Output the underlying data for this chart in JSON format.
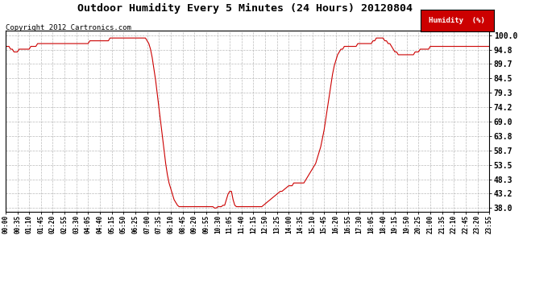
{
  "title": "Outdoor Humidity Every 5 Minutes (24 Hours) 20120804",
  "copyright_text": "Copyright 2012 Cartronics.com",
  "legend_label": "Humidity  (%)",
  "line_color": "#cc0000",
  "background_color": "#ffffff",
  "grid_color": "#aaaaaa",
  "yticks": [
    38.0,
    43.2,
    48.3,
    53.5,
    58.7,
    63.8,
    69.0,
    74.2,
    79.3,
    84.5,
    89.7,
    94.8,
    100.0
  ],
  "ylim": [
    36.8,
    101.8
  ],
  "humidity_data": [
    96,
    96,
    96,
    95,
    95,
    94,
    94,
    94,
    95,
    95,
    95,
    95,
    95,
    95,
    95,
    96,
    96,
    96,
    96,
    97,
    97,
    97,
    97,
    97,
    97,
    97,
    97,
    97,
    97,
    97,
    97,
    97,
    97,
    97,
    97,
    97,
    97,
    97,
    97,
    97,
    97,
    97,
    97,
    97,
    97,
    97,
    97,
    97,
    97,
    97,
    98,
    98,
    98,
    98,
    98,
    98,
    98,
    98,
    98,
    98,
    98,
    98,
    99,
    99,
    99,
    99,
    99,
    99,
    99,
    99,
    99,
    99,
    99,
    99,
    99,
    99,
    99,
    99,
    99,
    99,
    99,
    99,
    99,
    99,
    98,
    97,
    95,
    92,
    88,
    84,
    79,
    74,
    69,
    64,
    59,
    54,
    50,
    47,
    45,
    43,
    41,
    40,
    39,
    38.5,
    38.5,
    38.5,
    38.5,
    38.5,
    38.5,
    38.5,
    38.5,
    38.5,
    38.5,
    38.5,
    38.5,
    38.5,
    38.5,
    38.5,
    38.5,
    38.5,
    38.5,
    38.5,
    38.5,
    38.5,
    38,
    38,
    38.5,
    38.5,
    38.5,
    39,
    39,
    41,
    43,
    44,
    44,
    41,
    39,
    38.5,
    38.5,
    38.5,
    38.5,
    38.5,
    38.5,
    38.5,
    38.5,
    38.5,
    38.5,
    38.5,
    38.5,
    38.5,
    38.5,
    38.5,
    38.5,
    39,
    39.5,
    40,
    40.5,
    41,
    41.5,
    42,
    42.5,
    43,
    43.5,
    44,
    44,
    44.5,
    45,
    45.5,
    46,
    46,
    46,
    47,
    47,
    47,
    47,
    47,
    47,
    47,
    48,
    49,
    50,
    51,
    52,
    53,
    54,
    56,
    58,
    60,
    63,
    66,
    70,
    74,
    78,
    82,
    86,
    89,
    91,
    93,
    94,
    95,
    95,
    96,
    96,
    96,
    96,
    96,
    96,
    96,
    96,
    97,
    97,
    97,
    97,
    97,
    97,
    97,
    97,
    97,
    98,
    98,
    99,
    99,
    99,
    99,
    99,
    98,
    98,
    97,
    97,
    96,
    95,
    94,
    94,
    93,
    93,
    93,
    93,
    93,
    93,
    93,
    93,
    93,
    93,
    94,
    94,
    94,
    95,
    95,
    95,
    95,
    95,
    95,
    96,
    96,
    96,
    96,
    96,
    96,
    96,
    96,
    96,
    96,
    96,
    96,
    96,
    96,
    96,
    96,
    96,
    96,
    96,
    96,
    96,
    96,
    96,
    96,
    96,
    96,
    96,
    96,
    96,
    96,
    96,
    96,
    96,
    96,
    96,
    96
  ]
}
